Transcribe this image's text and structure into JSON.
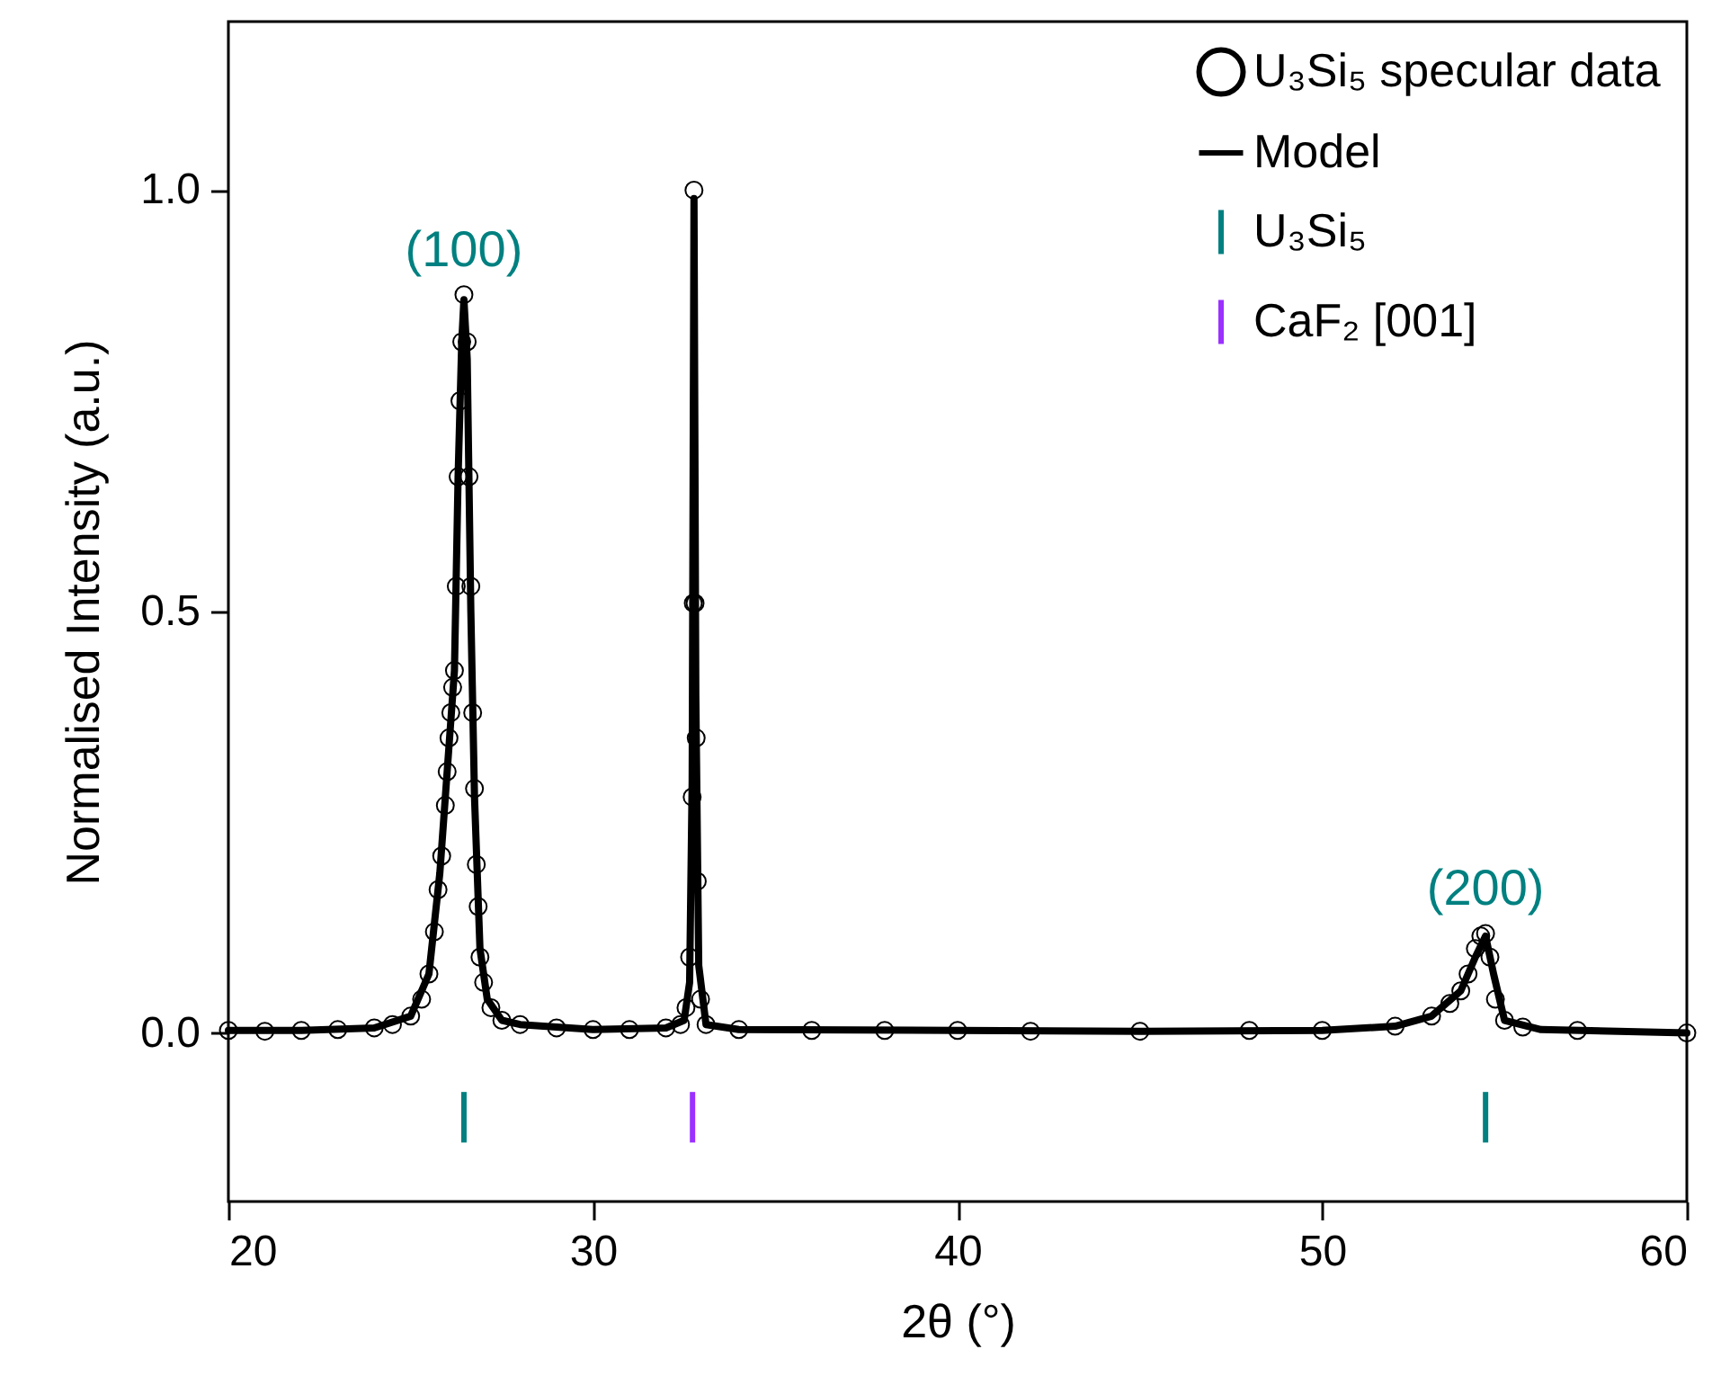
{
  "chart_data": {
    "type": "scatter",
    "xlabel": "2θ (°)",
    "ylabel": "Normalised Intensity (a.u.)",
    "xlim": [
      20,
      60
    ],
    "ylim": [
      -0.2,
      1.2
    ],
    "xticks": [
      20,
      30,
      40,
      50,
      60
    ],
    "yticks": [
      {
        "value": 0,
        "label": "0.0"
      },
      {
        "value": 0.5,
        "label": "0.5"
      },
      {
        "value": 1,
        "label": "1.0"
      }
    ],
    "grid": false,
    "legend": "top right",
    "annotations": [
      {
        "text": "(100)",
        "x": 26.46,
        "y": 0.876
      },
      {
        "text": "(200)",
        "x": 54.48,
        "y": 0.118
      }
    ],
    "series": [
      {
        "name": "U₃Si₅ specular data",
        "marker": "circle",
        "color": "#000000",
        "x": [
          20,
          21,
          22,
          23,
          24,
          24.5,
          25,
          25.3,
          25.5,
          25.65,
          25.75,
          25.85,
          25.95,
          26.0,
          26.05,
          26.1,
          26.15,
          26.2,
          26.25,
          26.3,
          26.35,
          26.4,
          26.46,
          26.55,
          26.6,
          26.65,
          26.7,
          26.75,
          26.8,
          26.85,
          26.9,
          27.0,
          27.2,
          27.5,
          28,
          29,
          30,
          31,
          32,
          32.4,
          32.55,
          32.65,
          32.72,
          32.75,
          32.77,
          32.8,
          32.83,
          32.86,
          32.95,
          33.1,
          34,
          36,
          38,
          40,
          42,
          45,
          48,
          50,
          52,
          53,
          53.5,
          53.8,
          54.0,
          54.2,
          54.35,
          54.48,
          54.6,
          54.75,
          55,
          55.5,
          57,
          60
        ],
        "values": [
          0.003,
          0.002,
          0.003,
          0.004,
          0.006,
          0.01,
          0.02,
          0.04,
          0.07,
          0.12,
          0.17,
          0.21,
          0.27,
          0.31,
          0.35,
          0.38,
          0.41,
          0.43,
          0.53,
          0.66,
          0.75,
          0.82,
          0.876,
          0.82,
          0.66,
          0.53,
          0.38,
          0.29,
          0.2,
          0.15,
          0.09,
          0.06,
          0.03,
          0.015,
          0.01,
          0.006,
          0.004,
          0.004,
          0.006,
          0.01,
          0.03,
          0.09,
          0.28,
          0.51,
          1.0,
          0.51,
          0.35,
          0.18,
          0.04,
          0.01,
          0.004,
          0.003,
          0.003,
          0.003,
          0.002,
          0.002,
          0.003,
          0.003,
          0.008,
          0.02,
          0.035,
          0.05,
          0.07,
          0.1,
          0.115,
          0.118,
          0.09,
          0.04,
          0.015,
          0.007,
          0.003,
          0.0
        ]
      },
      {
        "name": "Model",
        "type": "line",
        "color": "#000000",
        "x": [
          20,
          22,
          24,
          25,
          25.5,
          25.8,
          26.0,
          26.2,
          26.3,
          26.4,
          26.46,
          26.55,
          26.65,
          26.75,
          26.9,
          27.1,
          27.5,
          28,
          30,
          32,
          32.5,
          32.65,
          32.72,
          32.77,
          32.82,
          32.9,
          33.1,
          34,
          40,
          45,
          50,
          52,
          53,
          53.8,
          54.2,
          54.48,
          54.7,
          55,
          56,
          60
        ],
        "values": [
          0.003,
          0.003,
          0.006,
          0.02,
          0.07,
          0.19,
          0.31,
          0.43,
          0.66,
          0.82,
          0.87,
          0.8,
          0.5,
          0.28,
          0.1,
          0.04,
          0.015,
          0.01,
          0.004,
          0.006,
          0.015,
          0.06,
          0.3,
          0.99,
          0.4,
          0.08,
          0.01,
          0.004,
          0.003,
          0.002,
          0.003,
          0.008,
          0.02,
          0.05,
          0.09,
          0.115,
          0.07,
          0.015,
          0.004,
          0.0
        ]
      },
      {
        "name": "U₃Si₅",
        "type": "bar",
        "color": "#008080",
        "x": [
          26.46,
          54.48
        ],
        "base": [
          -0.13,
          -0.13
        ],
        "values": [
          0.06,
          0.06
        ]
      },
      {
        "name": "CaF₂ [001]",
        "type": "bar",
        "color": "#9b30ff",
        "x": [
          32.73
        ],
        "base": [
          -0.13
        ],
        "values": [
          0.06
        ]
      }
    ]
  }
}
